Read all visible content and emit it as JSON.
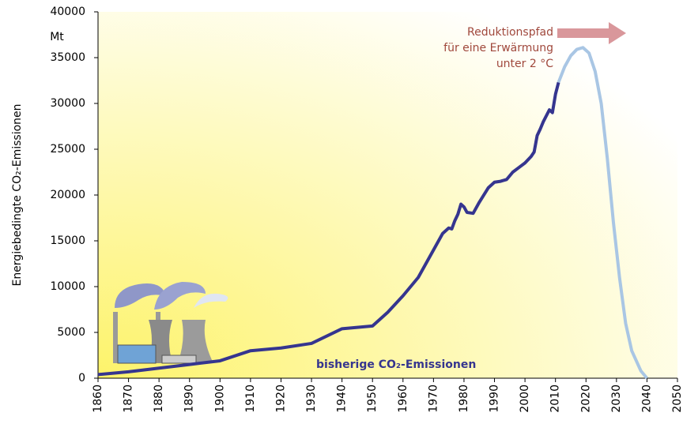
{
  "chart_data": {
    "type": "line",
    "y_label": "Energiebedingte CO₂-Emissionen",
    "y_unit": "Mt",
    "annotations": {
      "path": [
        "Reduktionspfad",
        "für eine Erwärmung",
        "unter 2 °C"
      ],
      "history": "bisherige CO₂-Emissionen"
    },
    "arrow_color": "#d9979b",
    "xlim": [
      1860,
      2050
    ],
    "xticks": [
      1860,
      1870,
      1880,
      1890,
      1900,
      1910,
      1920,
      1930,
      1940,
      1950,
      1960,
      1970,
      1980,
      1990,
      2000,
      2010,
      2020,
      2030,
      2040,
      2050
    ],
    "ylim": [
      0,
      40000
    ],
    "yticks": [
      0,
      5000,
      10000,
      15000,
      20000,
      25000,
      30000,
      35000,
      40000
    ],
    "series": [
      {
        "color": "#35358f",
        "width": 4,
        "x": [
          1860,
          1870,
          1880,
          1890,
          1900,
          1910,
          1920,
          1930,
          1940,
          1950,
          1955,
          1960,
          1965,
          1970,
          1973,
          1975,
          1976,
          1977,
          1978,
          1979,
          1980,
          1981,
          1983,
          1985,
          1988,
          1990,
          1992,
          1994,
          1996,
          1998,
          2000,
          2002,
          2003,
          2004,
          2005,
          2006,
          2008,
          2009,
          2010,
          2011
        ],
        "values": [
          400,
          700,
          1100,
          1500,
          1900,
          3000,
          3300,
          3800,
          5400,
          5700,
          7200,
          9000,
          11000,
          14000,
          15800,
          16400,
          16300,
          17200,
          17900,
          19000,
          18700,
          18100,
          18000,
          19200,
          20800,
          21400,
          21500,
          21700,
          22500,
          23000,
          23500,
          24200,
          24700,
          26500,
          27200,
          28000,
          29300,
          29000,
          31000,
          32300
        ]
      },
      {
        "color": "#a9c6e4",
        "width": 4,
        "x": [
          2011,
          2013,
          2015,
          2017,
          2019,
          2021,
          2023,
          2025,
          2027,
          2029,
          2031,
          2033,
          2035,
          2038,
          2040
        ],
        "values": [
          32300,
          34000,
          35200,
          35900,
          36100,
          35500,
          33500,
          30000,
          24000,
          17000,
          11000,
          6000,
          3000,
          800,
          0
        ]
      }
    ]
  }
}
